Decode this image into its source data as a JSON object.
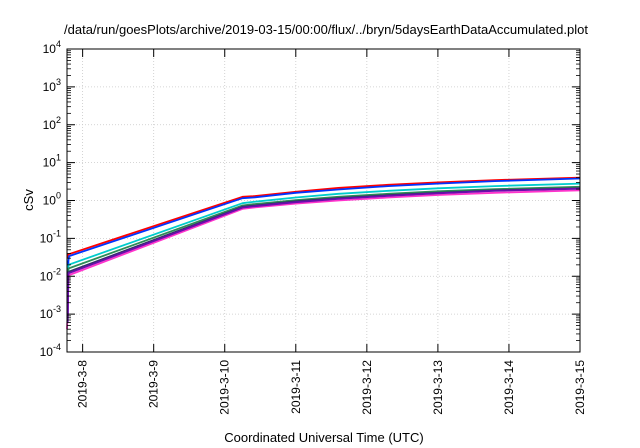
{
  "chart_data": {
    "type": "line",
    "title": "/data/run/goesPlots/archive/2019-03-15/00:00/flux/../bryn/5daysEarthDataAccumulated.plot",
    "xlabel": "Coordinated Universal Time (UTC)",
    "ylabel": "cSv",
    "y_scale": "log",
    "ylim": [
      0.0001,
      10000
    ],
    "y_ticks": [
      {
        "value": 0.0001,
        "base": "10",
        "exp": "-4"
      },
      {
        "value": 0.001,
        "base": "10",
        "exp": "-3"
      },
      {
        "value": 0.01,
        "base": "10",
        "exp": "-2"
      },
      {
        "value": 0.1,
        "base": "10",
        "exp": "-1"
      },
      {
        "value": 1,
        "base": "10",
        "exp": "0"
      },
      {
        "value": 10,
        "base": "10",
        "exp": "1"
      },
      {
        "value": 100,
        "base": "10",
        "exp": "2"
      },
      {
        "value": 1000,
        "base": "10",
        "exp": "3"
      },
      {
        "value": 10000,
        "base": "10",
        "exp": "4"
      }
    ],
    "x_ticks": [
      "2019-3-8",
      "2019-3-9",
      "2019-3-10",
      "2019-3-11",
      "2019-3-12",
      "2019-3-13",
      "2019-3-14",
      "2019-3-15"
    ],
    "xlim_days": [
      7.78,
      15.0
    ],
    "grid": true,
    "series": [
      {
        "color": "#ff0000",
        "x": [
          7.79,
          7.8,
          10.25,
          10.4,
          11.0,
          11.6,
          12.3,
          13.0,
          13.8,
          15.0
        ],
        "y": [
          0.03,
          0.038,
          1.25,
          1.3,
          1.7,
          2.15,
          2.6,
          3.0,
          3.45,
          4.0
        ]
      },
      {
        "color": "#0033ff",
        "x": [
          7.79,
          7.8,
          7.81,
          10.25,
          10.4,
          11.0,
          11.6,
          12.3,
          13.0,
          13.8,
          15.0
        ],
        "y": [
          0.001,
          0.025,
          0.034,
          1.15,
          1.2,
          1.6,
          1.95,
          2.4,
          2.8,
          3.25,
          3.8
        ]
      },
      {
        "color": "#00cccc",
        "x": [
          7.79,
          7.8,
          10.25,
          10.4,
          11.0,
          11.6,
          12.3,
          13.0,
          13.8,
          15.0
        ],
        "y": [
          0.004,
          0.02,
          0.85,
          0.92,
          1.2,
          1.5,
          1.8,
          2.1,
          2.4,
          2.8
        ]
      },
      {
        "color": "#2e8b57",
        "x": [
          7.79,
          7.8,
          10.25,
          10.4,
          11.0,
          11.6,
          12.3,
          13.0,
          13.8,
          15.0
        ],
        "y": [
          0.004,
          0.016,
          0.74,
          0.8,
          1.02,
          1.25,
          1.5,
          1.75,
          2.0,
          2.3
        ]
      },
      {
        "color": "#333366",
        "x": [
          7.79,
          7.8,
          10.25,
          10.4,
          11.0,
          11.6,
          12.3,
          13.0,
          13.8,
          15.0
        ],
        "y": [
          0.0008,
          0.013,
          0.68,
          0.73,
          0.95,
          1.15,
          1.38,
          1.6,
          1.85,
          2.1
        ]
      },
      {
        "color": "#ff33cc",
        "x": [
          7.78,
          7.79,
          7.8,
          10.25,
          10.4,
          11.0,
          11.6,
          12.3,
          13.0,
          13.8,
          15.0
        ],
        "y": [
          0.0004,
          0.001,
          0.0105,
          0.6,
          0.65,
          0.83,
          1.0,
          1.2,
          1.4,
          1.6,
          1.85
        ]
      },
      {
        "color": "#6a0dad",
        "x": [
          7.79,
          7.8,
          10.25,
          10.4,
          11.0,
          11.6,
          12.3,
          13.0,
          13.8,
          15.0
        ],
        "y": [
          0.0006,
          0.012,
          0.65,
          0.7,
          0.9,
          1.1,
          1.32,
          1.55,
          1.8,
          2.05
        ]
      }
    ]
  }
}
